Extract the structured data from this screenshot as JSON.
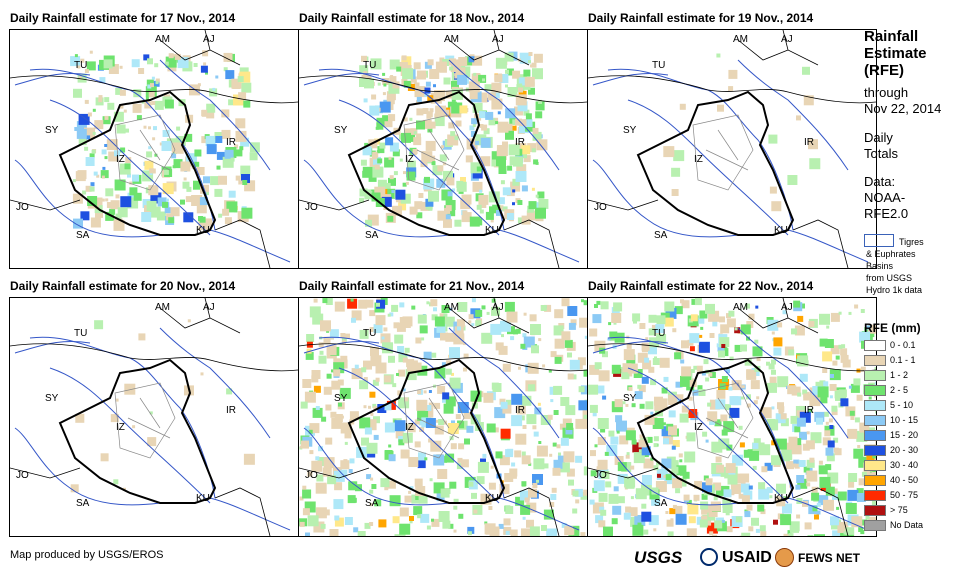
{
  "panels": [
    {
      "title": "Daily Rainfall estimate for 17 Nov., 2014",
      "intensity": 2
    },
    {
      "title": "Daily Rainfall estimate for 18 Nov., 2014",
      "intensity": 3
    },
    {
      "title": "Daily Rainfall estimate for 19 Nov., 2014",
      "intensity": 0
    },
    {
      "title": "Daily Rainfall estimate for 20 Nov., 2014",
      "intensity": 0
    },
    {
      "title": "Daily Rainfall estimate for 21 Nov., 2014",
      "intensity": 4
    },
    {
      "title": "Daily Rainfall estimate for 22 Nov., 2014",
      "intensity": 5
    }
  ],
  "country_labels": [
    {
      "code": "AM"
    },
    {
      "code": "AJ"
    },
    {
      "code": "TU"
    },
    {
      "code": "SY"
    },
    {
      "code": "IZ"
    },
    {
      "code": "IR"
    },
    {
      "code": "JO"
    },
    {
      "code": "SA"
    },
    {
      "code": "KU"
    }
  ],
  "side": {
    "title_lines": [
      "Rainfall",
      "Estimate",
      "(RFE)"
    ],
    "through_label": "through",
    "through_date": "Nov 22, 2014",
    "daily_lines": [
      "Daily",
      "Totals"
    ],
    "data_lines": [
      "Data:",
      "NOAA-",
      "RFE2.0"
    ],
    "basin_note_lines": [
      "Tigres",
      "& Euphrates",
      "Basins",
      "from USGS",
      "Hydro 1k data"
    ]
  },
  "legend": {
    "title": "RFE (mm)",
    "items": [
      {
        "label": "0 - 0.1",
        "color": "#ffffff"
      },
      {
        "label": "0.1 - 1",
        "color": "#e8d5b5"
      },
      {
        "label": "1 - 2",
        "color": "#b8f0b0"
      },
      {
        "label": "2 - 5",
        "color": "#6ee36e"
      },
      {
        "label": "5 - 10",
        "color": "#aee8f8"
      },
      {
        "label": "10 - 15",
        "color": "#8ccaf5"
      },
      {
        "label": "15 - 20",
        "color": "#4a97f0"
      },
      {
        "label": "20 - 30",
        "color": "#1e50e0"
      },
      {
        "label": "30 - 40",
        "color": "#ffe88a"
      },
      {
        "label": "40 - 50",
        "color": "#ffa500"
      },
      {
        "label": "50 - 75",
        "color": "#ff2a00"
      },
      {
        "label": "> 75",
        "color": "#b01010"
      },
      {
        "label": "No Data",
        "color": "#a0a0a0"
      }
    ]
  },
  "footer": {
    "credit": "Map produced by USGS/EROS"
  },
  "logos": [
    {
      "text": "USGS",
      "color": "#006f41"
    },
    {
      "text": "USAID",
      "color": "#002a6c"
    },
    {
      "text": "FEWS NET",
      "color": "#c25b16"
    }
  ]
}
